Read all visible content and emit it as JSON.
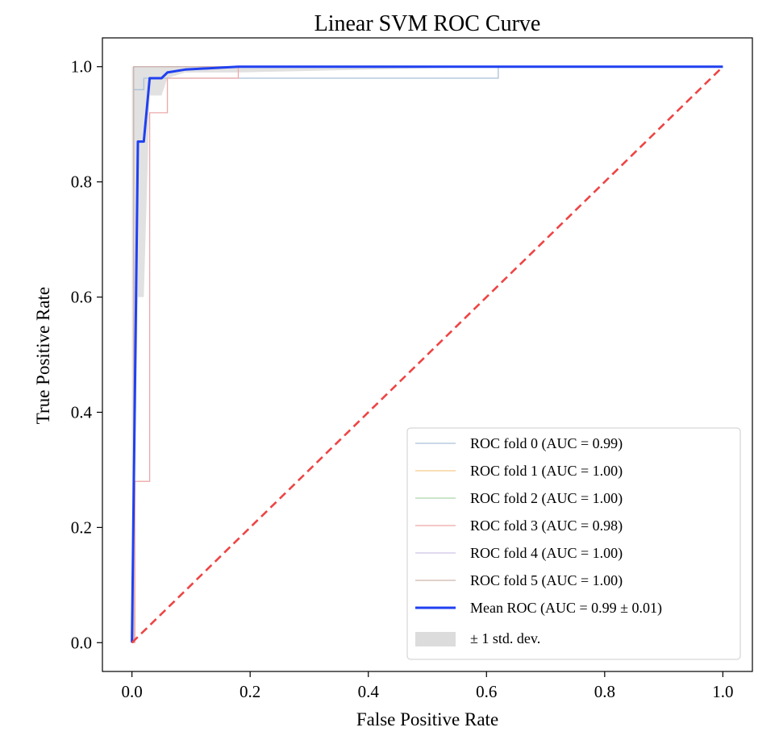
{
  "chart_data": {
    "type": "line",
    "title": "Linear SVM ROC Curve",
    "xlabel": "False Positive Rate",
    "ylabel": "True Positive Rate",
    "xlim": [
      -0.05,
      1.05
    ],
    "ylim": [
      -0.05,
      1.05
    ],
    "xticks": [
      0.0,
      0.2,
      0.4,
      0.6,
      0.8,
      1.0
    ],
    "xtick_labels": [
      "0.0",
      "0.2",
      "0.4",
      "0.6",
      "0.8",
      "1.0"
    ],
    "yticks": [
      0.0,
      0.2,
      0.4,
      0.6,
      0.8,
      1.0
    ],
    "ytick_labels": [
      "0.0",
      "0.2",
      "0.4",
      "0.6",
      "0.8",
      "1.0"
    ],
    "grid": false,
    "legend_position": "lower-right",
    "series": [
      {
        "name": "ROC fold 0 (AUC = 0.99)",
        "color": "#a9c1d6",
        "x": [
          0,
          0.003,
          0.003,
          0.02,
          0.02,
          0.62,
          0.62,
          1.0
        ],
        "y": [
          0,
          0,
          0.96,
          0.96,
          0.98,
          0.98,
          1.0,
          1.0
        ]
      },
      {
        "name": "ROC fold 1 (AUC = 1.00)",
        "color": "#f5c98e",
        "x": [
          0,
          0.003,
          0.003,
          1.0
        ],
        "y": [
          0,
          0,
          1.0,
          1.0
        ]
      },
      {
        "name": "ROC fold 2 (AUC = 1.00)",
        "color": "#a9d6a9",
        "x": [
          0,
          0.003,
          0.003,
          1.0
        ],
        "y": [
          0,
          0,
          1.0,
          1.0
        ]
      },
      {
        "name": "ROC fold 3 (AUC = 0.98)",
        "color": "#eea7a7",
        "x": [
          0,
          0.005,
          0.005,
          0.03,
          0.03,
          0.06,
          0.06,
          0.18,
          0.18,
          1.0
        ],
        "y": [
          0,
          0,
          0.28,
          0.28,
          0.92,
          0.92,
          0.98,
          0.98,
          1.0,
          1.0
        ]
      },
      {
        "name": "ROC fold 4 (AUC = 1.00)",
        "color": "#cfc4e6",
        "x": [
          0,
          0.003,
          0.003,
          1.0
        ],
        "y": [
          0,
          0,
          1.0,
          1.0
        ]
      },
      {
        "name": "ROC fold 5 (AUC = 1.00)",
        "color": "#cfb3ae",
        "x": [
          0,
          0.003,
          0.003,
          1.0
        ],
        "y": [
          0,
          0,
          1.0,
          1.0
        ]
      },
      {
        "name": "Mean ROC (AUC = 0.99 ± 0.01)",
        "color": "#2040f0",
        "x": [
          0,
          0.01,
          0.01,
          0.02,
          0.03,
          0.05,
          0.06,
          0.09,
          0.18,
          0.62,
          0.63,
          1.0
        ],
        "y": [
          0,
          0.87,
          0.87,
          0.87,
          0.98,
          0.98,
          0.99,
          0.995,
          1.0,
          1.0,
          1.0,
          1.0
        ]
      }
    ],
    "band": {
      "name": "± 1 std. dev.",
      "color": "#dcdcdc",
      "x": [
        0.0,
        0.01,
        0.02,
        0.03,
        0.05,
        0.06,
        0.09,
        0.18,
        0.62,
        1.0
      ],
      "upper": [
        1.0,
        1.0,
        1.0,
        1.0,
        1.0,
        1.0,
        1.0,
        1.0,
        1.0,
        1.0
      ],
      "lower": [
        0.0,
        0.6,
        0.6,
        0.95,
        0.95,
        0.98,
        0.99,
        0.99,
        1.0,
        1.0
      ]
    },
    "chance_line": {
      "color": "#ee4444",
      "x": [
        0,
        1
      ],
      "y": [
        0,
        1
      ]
    }
  }
}
